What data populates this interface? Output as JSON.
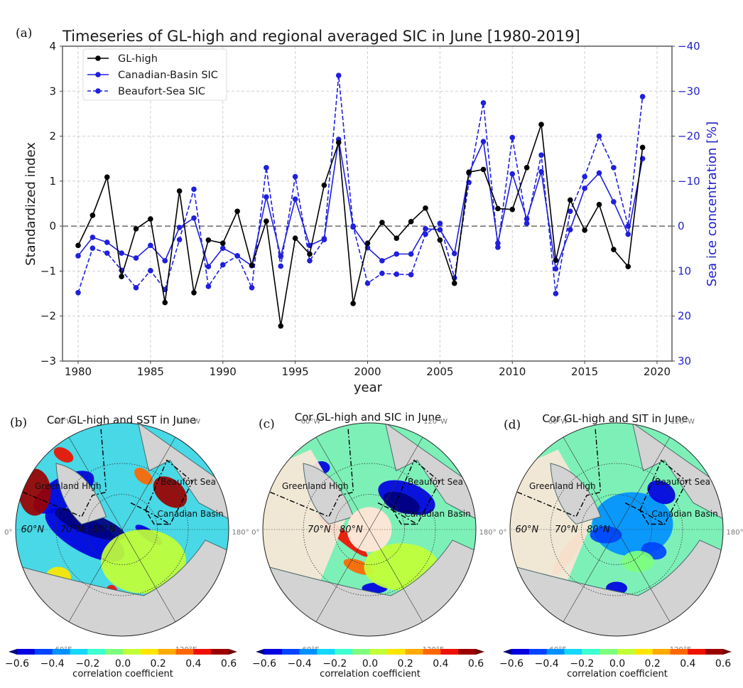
{
  "figure": {
    "panel_a_letter": "(a)",
    "panel_b_letter": "(b)",
    "panel_c_letter": "(c)",
    "panel_d_letter": "(d)"
  },
  "chart_data": [
    {
      "type": "line",
      "title": "Timeseries of GL-high and regional averaged SIC in June [1980-2019]",
      "xlabel": "year",
      "ylabel": "Standardized index",
      "ylabel_right": "Sea ice concentration [%]",
      "xlim": [
        1979,
        2021
      ],
      "ylim": [
        -3,
        4
      ],
      "ylim_right": [
        30,
        -40
      ],
      "x_ticks": [
        1980,
        1985,
        1990,
        1995,
        2000,
        2005,
        2010,
        2015,
        2020
      ],
      "y_ticks": [
        -3,
        -2,
        -1,
        0,
        1,
        2,
        3,
        4
      ],
      "y_ticks_right": [
        30,
        20,
        10,
        0,
        -10,
        -20,
        -30,
        -40
      ],
      "y_tick_labels": [
        "−3",
        "−2",
        "−1",
        "0",
        "1",
        "2",
        "3",
        "4"
      ],
      "y_tick_labels_right": [
        "30",
        "20",
        "10",
        "0",
        "−10",
        "−20",
        "−30",
        "−40"
      ],
      "grid": true,
      "zero_line": true,
      "legend_position": "top-left",
      "x": [
        1980,
        1981,
        1982,
        1983,
        1984,
        1985,
        1986,
        1987,
        1988,
        1989,
        1990,
        1991,
        1992,
        1993,
        1994,
        1995,
        1996,
        1997,
        1998,
        1999,
        2000,
        2001,
        2002,
        2003,
        2004,
        2005,
        2006,
        2007,
        2008,
        2009,
        2010,
        2011,
        2012,
        2013,
        2014,
        2015,
        2016,
        2017,
        2018,
        2019
      ],
      "series": [
        {
          "name": "GL-high",
          "color": "#000000",
          "style": "solid",
          "values": [
            -0.43,
            0.24,
            1.09,
            -1.12,
            -0.06,
            0.16,
            -1.7,
            0.78,
            -1.48,
            -0.31,
            -0.38,
            0.33,
            -0.87,
            0.11,
            -2.22,
            -0.27,
            -0.62,
            0.91,
            1.86,
            -1.72,
            -0.38,
            0.08,
            -0.27,
            0.1,
            0.4,
            -0.31,
            -1.27,
            1.2,
            1.26,
            0.39,
            0.37,
            1.3,
            2.26,
            -0.76,
            0.58,
            -0.09,
            0.48,
            -0.52,
            -0.9,
            1.75
          ]
        },
        {
          "name": "Canadian-Basin SIC",
          "color": "#1f1fdd",
          "style": "solid",
          "values": [
            -0.66,
            -0.25,
            -0.36,
            -0.6,
            -0.71,
            -0.43,
            -0.77,
            -0.03,
            0.18,
            -0.9,
            -0.49,
            -0.66,
            -0.88,
            0.65,
            -0.67,
            0.6,
            -0.43,
            -0.28,
            1.93,
            -0.02,
            -0.48,
            -0.77,
            -0.62,
            -0.62,
            -0.06,
            -0.08,
            -0.61,
            1.18,
            1.88,
            -0.38,
            1.16,
            0.16,
            1.21,
            -0.95,
            -0.08,
            0.84,
            1.18,
            0.54,
            -0.18,
            1.5
          ]
        },
        {
          "name": "Beaufort-Sea SIC",
          "color": "#1f1fdd",
          "style": "dashed",
          "values": [
            -1.48,
            -0.49,
            -0.6,
            -0.98,
            -1.37,
            -0.99,
            -1.41,
            -0.3,
            0.82,
            -1.34,
            -0.86,
            -0.66,
            -1.37,
            1.3,
            -0.89,
            1.1,
            -0.77,
            -0.3,
            3.35,
            0.0,
            -1.27,
            -1.05,
            -1.07,
            -1.08,
            -0.18,
            0.06,
            -1.15,
            0.97,
            2.74,
            -0.47,
            1.97,
            0.06,
            1.58,
            -1.5,
            0.33,
            1.1,
            2.0,
            1.3,
            0.0,
            2.88
          ]
        }
      ]
    },
    {
      "type": "heatmap",
      "panel": "b",
      "title": "Cor GL-high and SST in June",
      "longitude_labels": [
        "60°W",
        "120°W",
        "0°",
        "180°",
        "60°E",
        "120°E"
      ],
      "latitude_labels": [
        "60°N",
        "70°N",
        "80°N"
      ],
      "region_labels": [
        "Greenland High",
        "Beaufort Sea",
        "Canadian Basin"
      ],
      "colorbar": {
        "label": "correlation coefficient",
        "min": -0.6,
        "max": 0.6,
        "step": 0.1,
        "tick_labels": [
          "−0.6",
          "−0.4",
          "−0.2",
          "0.0",
          "0.2",
          "0.4",
          "0.6"
        ],
        "extend": "both"
      }
    },
    {
      "type": "heatmap",
      "panel": "c",
      "title": "Cor GL-high and SIC in June",
      "longitude_labels": [
        "60°W",
        "120°W",
        "0°",
        "180°",
        "60°E",
        "120°E"
      ],
      "latitude_labels": [
        "70°N",
        "80°N"
      ],
      "region_labels": [
        "Greenland High",
        "Beaufort Sea",
        "Canadian Basin"
      ],
      "colorbar": {
        "label": "correlation coefficient",
        "min": -0.6,
        "max": 0.6,
        "step": 0.1,
        "tick_labels": [
          "−0.6",
          "−0.4",
          "−0.2",
          "0.0",
          "0.2",
          "0.4",
          "0.6"
        ],
        "extend": "both"
      }
    },
    {
      "type": "heatmap",
      "panel": "d",
      "title": "Cor GL-high and SIT in June",
      "longitude_labels": [
        "60°W",
        "120°W",
        "0°",
        "180°",
        "60°E",
        "120°E"
      ],
      "latitude_labels": [
        "60°N",
        "70°N",
        "80°N"
      ],
      "region_labels": [
        "Greenland High",
        "Beaufort Sea",
        "Canadian Basin"
      ],
      "colorbar": {
        "label": "correlation coefficient",
        "min": -0.6,
        "max": 0.6,
        "step": 0.1,
        "tick_labels": [
          "−0.6",
          "−0.4",
          "−0.2",
          "0.0",
          "0.2",
          "0.4",
          "0.6"
        ],
        "extend": "both"
      }
    }
  ],
  "colormap": [
    "#00007f",
    "#0000e0",
    "#0044ff",
    "#0090ff",
    "#14d8ff",
    "#3dffd0",
    "#7dff7d",
    "#c2ff36",
    "#ffe600",
    "#ffaa00",
    "#ff6600",
    "#ee1100",
    "#9b0000",
    "#6a0000"
  ],
  "map_colors": {
    "land": "#d3d3d3",
    "coast": "#4a6b6b",
    "greenland": "#f7e6d6",
    "ocean_base": "#6df0c8"
  }
}
